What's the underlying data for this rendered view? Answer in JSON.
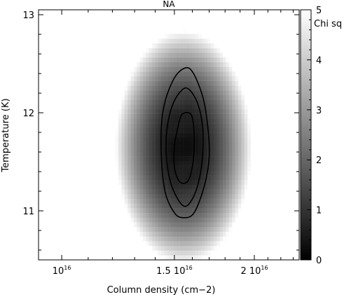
{
  "chart_data": {
    "type": "heatmap",
    "title": "NA",
    "xlabel": "Column density (cm−2)",
    "ylabel": "Temperature (K)",
    "x_scale": "log",
    "xlim": [
      9200000000000000.0,
      2.35e+16
    ],
    "ylim": [
      10.5,
      13.05
    ],
    "x_ticks": [
      {
        "value": 1e+16,
        "mantissa": "10",
        "exponent": "16"
      },
      {
        "value": 1.5e+16,
        "mantissa": "1.5 10",
        "exponent": "16"
      },
      {
        "value": 2e+16,
        "mantissa": "2 10",
        "exponent": "16"
      }
    ],
    "y_ticks": [
      {
        "value": 11,
        "label": "11"
      },
      {
        "value": 12,
        "label": "12"
      },
      {
        "value": 13,
        "label": "13"
      }
    ],
    "colorbar": {
      "label": "Chi sq",
      "range": [
        0,
        5
      ],
      "ticks": [
        "0",
        "1",
        "2",
        "3",
        "4",
        "5"
      ],
      "colormap": "grayscale"
    },
    "minimum": {
      "x": 1.55e+16,
      "y": 11.65
    },
    "heatmap_cells": [
      {
        "x": 1.55e+16,
        "y": 11.65,
        "value": 0.25
      },
      {
        "x": 1.52e+16,
        "y": 11.9,
        "value": 0.6
      },
      {
        "x": 1.58e+16,
        "y": 11.4,
        "value": 0.6
      },
      {
        "x": 1.48e+16,
        "y": 12.2,
        "value": 1.2
      },
      {
        "x": 1.62e+16,
        "y": 11.1,
        "value": 1.2
      },
      {
        "x": 1.45e+16,
        "y": 12.5,
        "value": 2.2
      },
      {
        "x": 1.66e+16,
        "y": 10.85,
        "value": 2.2
      },
      {
        "x": 1.44e+16,
        "y": 12.75,
        "value": 3.4
      },
      {
        "x": 1.68e+16,
        "y": 10.65,
        "value": 3.4
      }
    ],
    "contours": [
      {
        "level": 1,
        "points": [
          [
            1.55e+16,
            11.28
          ],
          [
            1.58e+16,
            11.32
          ],
          [
            1.6e+16,
            11.45
          ],
          [
            1.61e+16,
            11.62
          ],
          [
            1.61e+16,
            11.8
          ],
          [
            1.6e+16,
            11.95
          ],
          [
            1.58e+16,
            12.0
          ],
          [
            1.54e+16,
            11.98
          ],
          [
            1.52e+16,
            11.86
          ],
          [
            1.5e+16,
            11.66
          ],
          [
            1.5e+16,
            11.45
          ],
          [
            1.52e+16,
            11.32
          ],
          [
            1.55e+16,
            11.28
          ]
        ]
      },
      {
        "level": 2,
        "points": [
          [
            1.55e+16,
            11.05
          ],
          [
            1.6e+16,
            11.12
          ],
          [
            1.64e+16,
            11.32
          ],
          [
            1.66e+16,
            11.56
          ],
          [
            1.66e+16,
            11.86
          ],
          [
            1.63e+16,
            12.1
          ],
          [
            1.58e+16,
            12.24
          ],
          [
            1.54e+16,
            12.23
          ],
          [
            1.49e+16,
            12.08
          ],
          [
            1.46e+16,
            11.82
          ],
          [
            1.46e+16,
            11.5
          ],
          [
            1.49e+16,
            11.23
          ],
          [
            1.55e+16,
            11.05
          ]
        ]
      },
      {
        "level": 3,
        "points": [
          [
            1.55e+16,
            10.93
          ],
          [
            1.61e+16,
            10.98
          ],
          [
            1.67e+16,
            11.25
          ],
          [
            1.7e+16,
            11.55
          ],
          [
            1.69e+16,
            11.88
          ],
          [
            1.66e+16,
            12.17
          ],
          [
            1.6e+16,
            12.42
          ],
          [
            1.55e+16,
            12.45
          ],
          [
            1.49e+16,
            12.32
          ],
          [
            1.44e+16,
            12.02
          ],
          [
            1.43e+16,
            11.62
          ],
          [
            1.45e+16,
            11.2
          ],
          [
            1.5e+16,
            10.98
          ],
          [
            1.55e+16,
            10.93
          ]
        ]
      }
    ]
  }
}
